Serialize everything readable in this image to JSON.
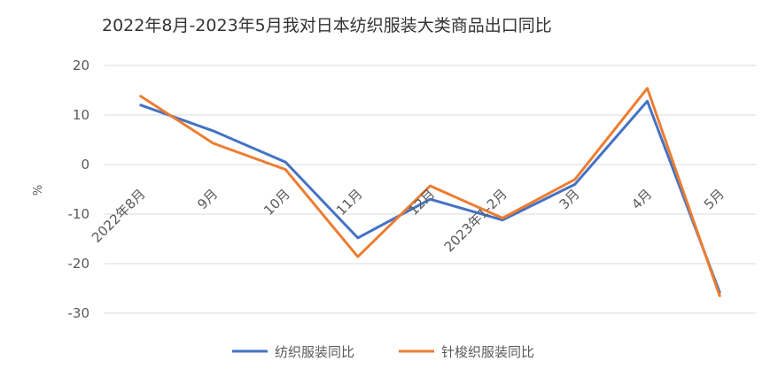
{
  "chart_data": {
    "type": "line",
    "title": "2022年8月-2023年5月我对日本纺织服装大类商品出口同比",
    "xlabel": "",
    "ylabel": "%",
    "ylim": [
      -30,
      20
    ],
    "yticks": [
      20,
      10,
      0,
      -10,
      -20,
      -30
    ],
    "grid": true,
    "legend_position": "bottom",
    "categories": [
      "2022年8月",
      "9月",
      "10月",
      "11月",
      "12月",
      "2023年1-2月",
      "3月",
      "4月",
      "5月"
    ],
    "series": [
      {
        "name": "纺织服装同比",
        "color": "#4472C4",
        "values": [
          12.0,
          6.8,
          0.5,
          -14.8,
          -7.0,
          -11.2,
          -4.0,
          12.8,
          -25.8
        ]
      },
      {
        "name": "针梭织服装同比",
        "color": "#ED7D31",
        "values": [
          13.8,
          4.3,
          -1.0,
          -18.6,
          -4.3,
          -10.8,
          -3.0,
          15.4,
          -26.5
        ]
      }
    ]
  }
}
